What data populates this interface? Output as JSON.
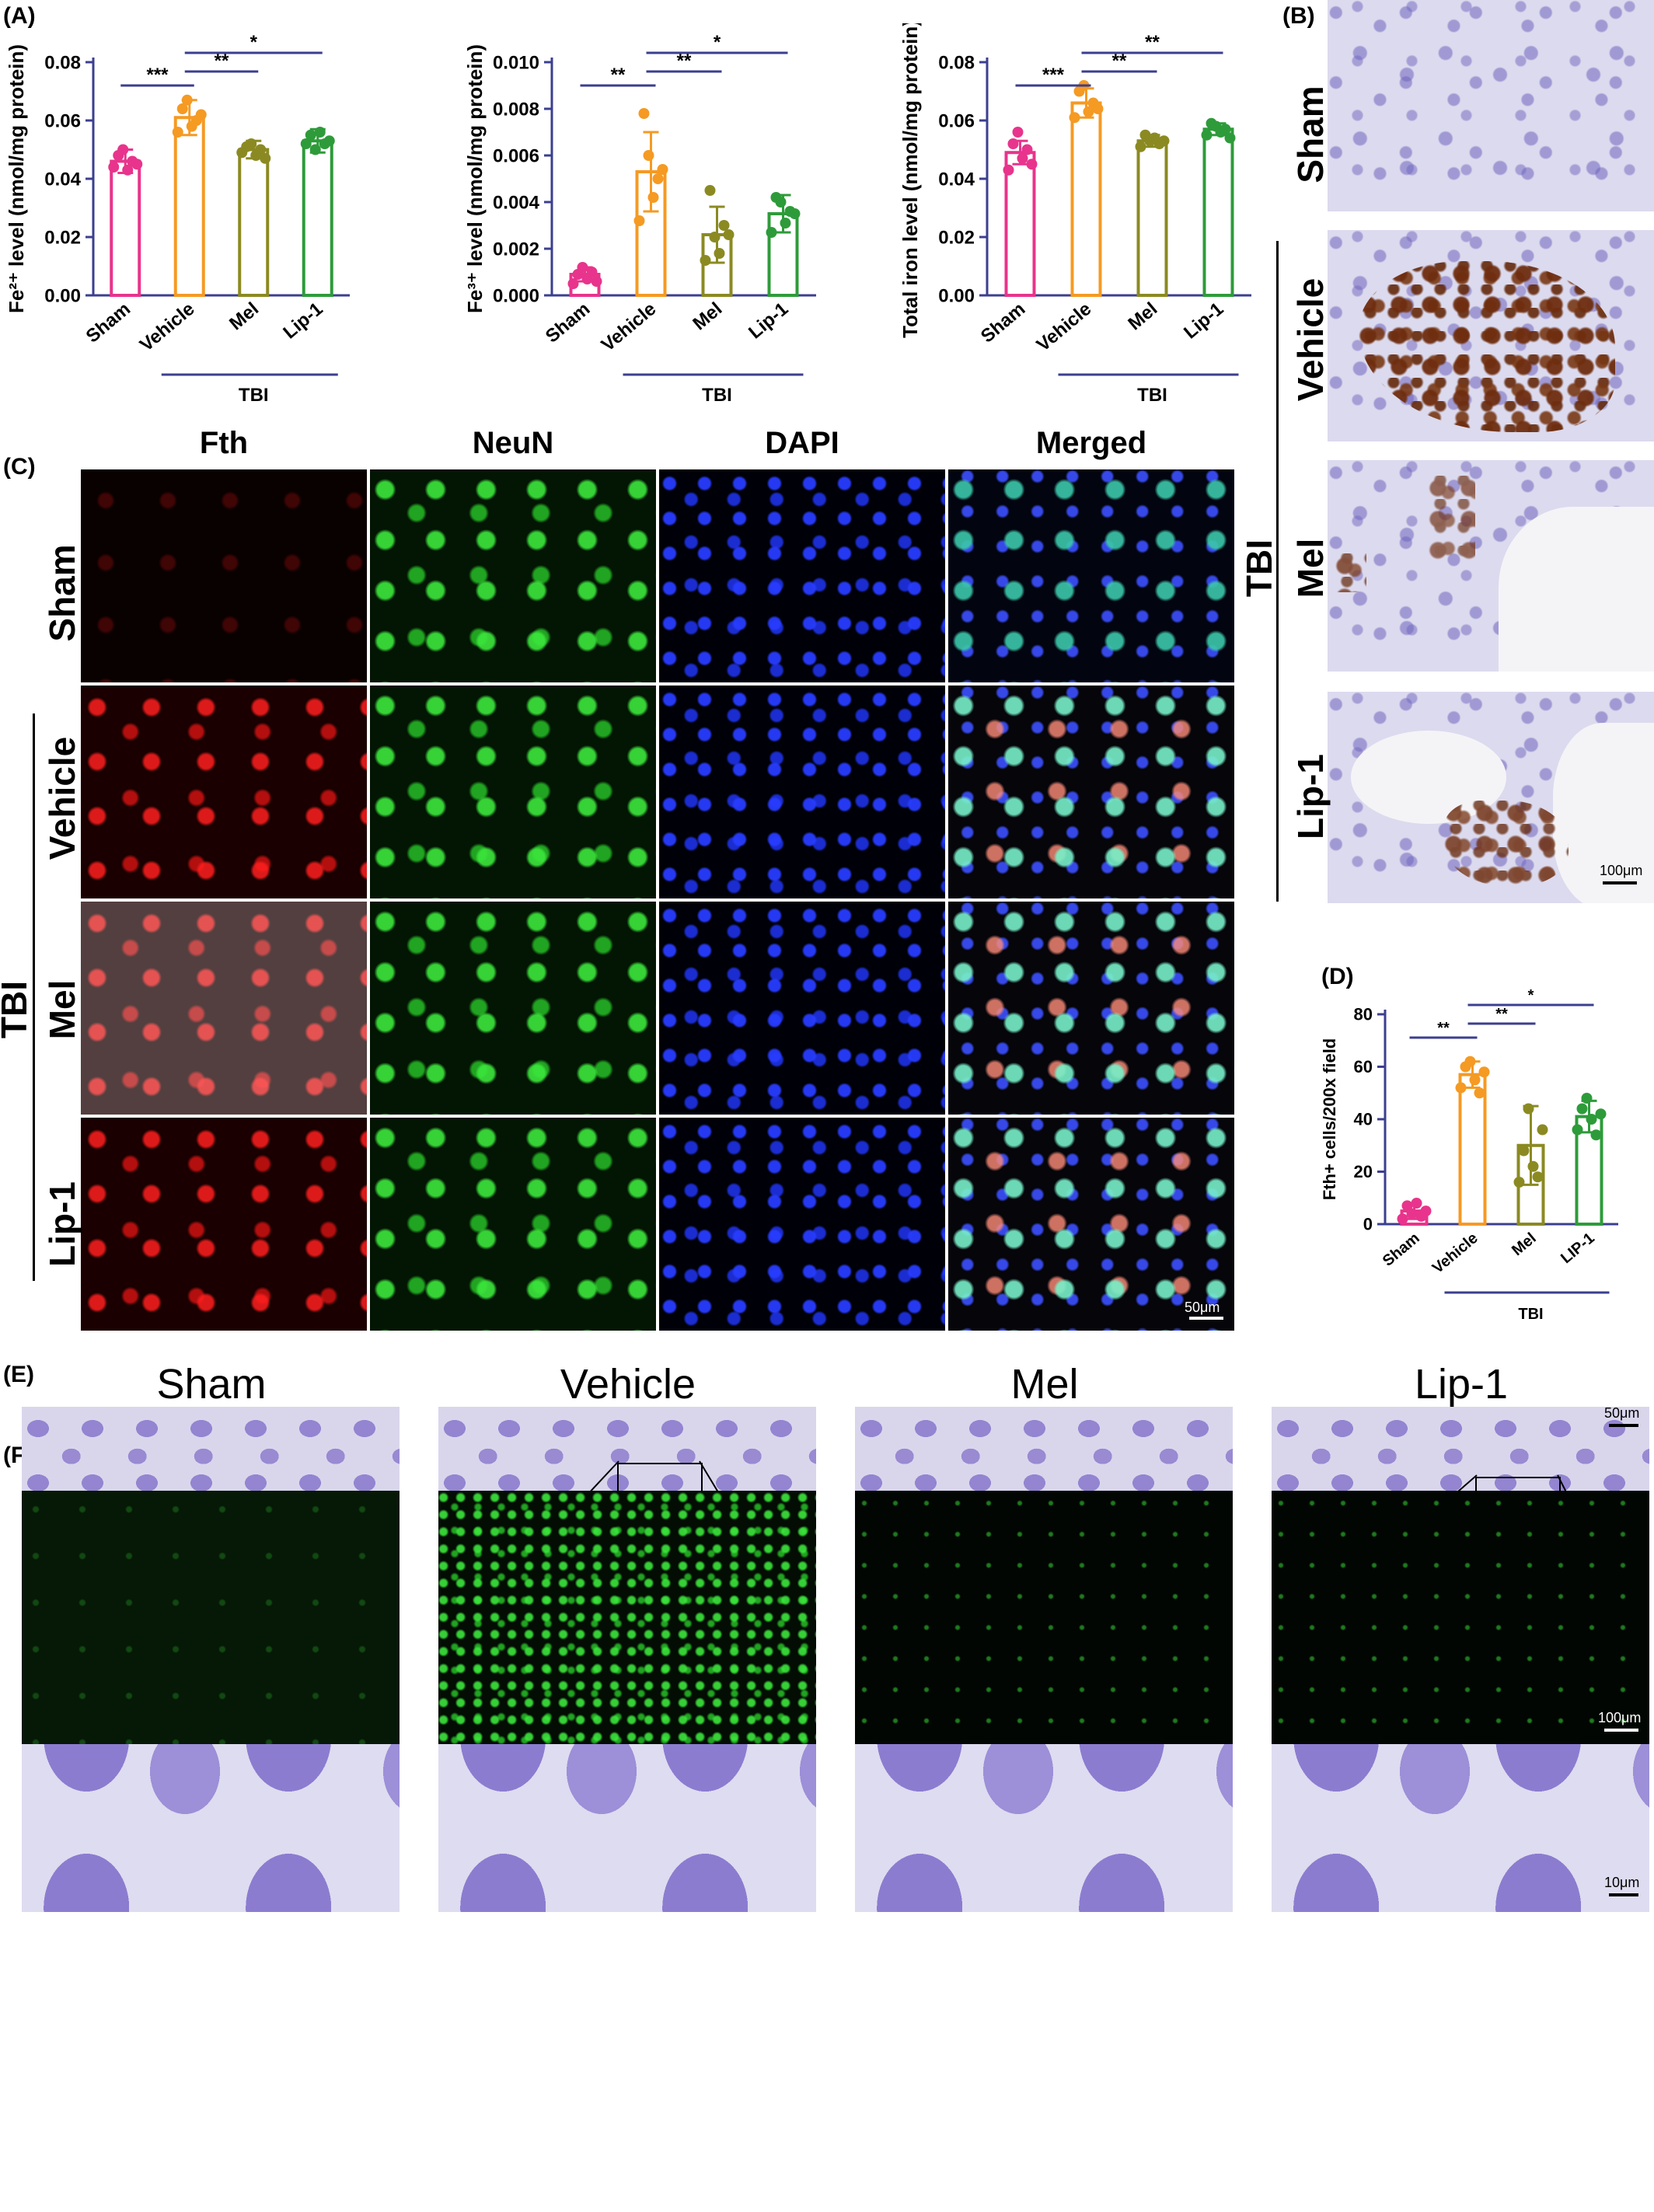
{
  "panels": {
    "A": "(A)",
    "B": "(B)",
    "C": "(C)",
    "D": "(D)",
    "E": "(E)",
    "F": "(F)"
  },
  "chart_data": [
    {
      "type": "bar",
      "panel": "A1",
      "categories": [
        "Sham",
        "Vehicle",
        "Mel",
        "Lip-1"
      ],
      "values": [
        0.046,
        0.061,
        0.05,
        0.053
      ],
      "errors": [
        0.004,
        0.006,
        0.003,
        0.004
      ],
      "points": [
        [
          0.044,
          0.048,
          0.05,
          0.043,
          0.046,
          0.045
        ],
        [
          0.056,
          0.064,
          0.067,
          0.058,
          0.06,
          0.062
        ],
        [
          0.049,
          0.051,
          0.052,
          0.048,
          0.05,
          0.047
        ],
        [
          0.052,
          0.055,
          0.05,
          0.056,
          0.052,
          0.053
        ]
      ],
      "colors": [
        "#e8348c",
        "#f59a23",
        "#8b8a22",
        "#2e9b3a"
      ],
      "ylabel": "Fe²⁺ level (nmol/mg protein)",
      "ylim": [
        0,
        0.08
      ],
      "yticks": [
        "0.00",
        "0.02",
        "0.04",
        "0.06",
        "0.08"
      ],
      "group_label": "TBI",
      "significance": [
        {
          "from": 0,
          "to": 1,
          "label": "***"
        },
        {
          "from": 1,
          "to": 2,
          "label": "**"
        },
        {
          "from": 1,
          "to": 3,
          "label": "*"
        }
      ]
    },
    {
      "type": "bar",
      "panel": "A2",
      "categories": [
        "Sham",
        "Vehicle",
        "Mel",
        "Lip-1"
      ],
      "values": [
        0.0009,
        0.0053,
        0.0026,
        0.0035
      ],
      "errors": [
        0.0003,
        0.0017,
        0.0012,
        0.0008
      ],
      "points": [
        [
          0.0005,
          0.0009,
          0.0012,
          0.0007,
          0.001,
          0.0006
        ],
        [
          0.0032,
          0.0078,
          0.006,
          0.0042,
          0.005,
          0.0054
        ],
        [
          0.0015,
          0.0045,
          0.0025,
          0.0018,
          0.003,
          0.0026
        ],
        [
          0.0027,
          0.0042,
          0.004,
          0.0031,
          0.0036,
          0.0035
        ]
      ],
      "colors": [
        "#e8348c",
        "#f59a23",
        "#8b8a22",
        "#2e9b3a"
      ],
      "ylabel": "Fe³⁺ level (nmol/mg protein)",
      "ylim": [
        0,
        0.01
      ],
      "yticks": [
        "0.000",
        "0.002",
        "0.004",
        "0.006",
        "0.008",
        "0.010"
      ],
      "group_label": "TBI",
      "significance": [
        {
          "from": 0,
          "to": 1,
          "label": "**"
        },
        {
          "from": 1,
          "to": 2,
          "label": "**"
        },
        {
          "from": 1,
          "to": 3,
          "label": "*"
        }
      ]
    },
    {
      "type": "bar",
      "panel": "A3",
      "categories": [
        "Sham",
        "Vehicle",
        "Mel",
        "Lip-1"
      ],
      "values": [
        0.049,
        0.066,
        0.053,
        0.057
      ],
      "errors": [
        0.004,
        0.005,
        0.002,
        0.002
      ],
      "points": [
        [
          0.043,
          0.052,
          0.056,
          0.047,
          0.05,
          0.045
        ],
        [
          0.061,
          0.07,
          0.072,
          0.063,
          0.066,
          0.064
        ],
        [
          0.051,
          0.055,
          0.053,
          0.054,
          0.052,
          0.053
        ],
        [
          0.055,
          0.059,
          0.058,
          0.056,
          0.057,
          0.054
        ]
      ],
      "colors": [
        "#e8348c",
        "#f59a23",
        "#8b8a22",
        "#2e9b3a"
      ],
      "ylabel": "Total iron level (nmol/mg protein)",
      "ylim": [
        0,
        0.08
      ],
      "yticks": [
        "0.00",
        "0.02",
        "0.04",
        "0.06",
        "0.08"
      ],
      "group_label": "TBI",
      "significance": [
        {
          "from": 0,
          "to": 1,
          "label": "***"
        },
        {
          "from": 1,
          "to": 2,
          "label": "**"
        },
        {
          "from": 1,
          "to": 3,
          "label": "**"
        }
      ]
    },
    {
      "type": "bar",
      "panel": "D",
      "categories": [
        "Sham",
        "Vehicle",
        "Mel",
        "LIP-1"
      ],
      "values": [
        5,
        57,
        30,
        41
      ],
      "errors": [
        3,
        5,
        15,
        6
      ],
      "points": [
        [
          2,
          7,
          4,
          8,
          3,
          5
        ],
        [
          52,
          60,
          62,
          55,
          50,
          58
        ],
        [
          16,
          28,
          44,
          22,
          18,
          36
        ],
        [
          36,
          44,
          48,
          40,
          34,
          42
        ]
      ],
      "colors": [
        "#e8348c",
        "#f59a23",
        "#8b8a22",
        "#2e9b3a"
      ],
      "ylabel": "Fth+ cells/200x field",
      "ylim": [
        0,
        80
      ],
      "yticks": [
        "0",
        "20",
        "40",
        "60",
        "80"
      ],
      "group_label": "TBI",
      "significance": [
        {
          "from": 0,
          "to": 1,
          "label": "**"
        },
        {
          "from": 1,
          "to": 2,
          "label": "**"
        },
        {
          "from": 1,
          "to": 3,
          "label": "*"
        }
      ]
    }
  ],
  "panelB": {
    "rows": [
      "Sham",
      "Vehicle",
      "Mel",
      "Lip-1"
    ],
    "group": "TBI",
    "scale": "100μm"
  },
  "panelC": {
    "columns": [
      "Fth",
      "NeuN",
      "DAPI",
      "Merged"
    ],
    "rows": [
      "Sham",
      "Vehicle",
      "Mel",
      "Lip-1"
    ],
    "group": "TBI",
    "scale": "50μm"
  },
  "panelE": {
    "columns": [
      "Sham",
      "Vehicle",
      "Mel",
      "Lip-1"
    ],
    "scale_top": "50μm",
    "scale_bottom": "10μm"
  },
  "panelF": {
    "scale": "100μm"
  }
}
